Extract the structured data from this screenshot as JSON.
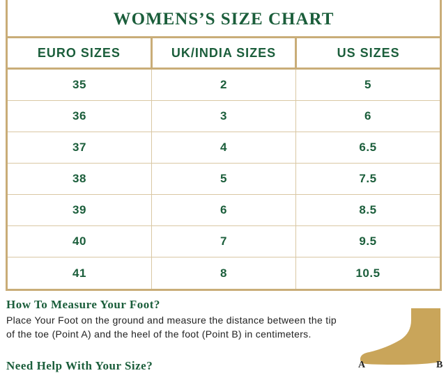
{
  "title": "WOMENS’S SIZE CHART",
  "table": {
    "headers": [
      "EURO SIZES",
      "UK/INDIA SIZES",
      "US SIZES"
    ],
    "rows": [
      [
        "35",
        "2",
        "5"
      ],
      [
        "36",
        "3",
        "6"
      ],
      [
        "37",
        "4",
        "6.5"
      ],
      [
        "38",
        "5",
        "7.5"
      ],
      [
        "39",
        "6",
        "8.5"
      ],
      [
        "40",
        "7",
        "9.5"
      ],
      [
        "41",
        "8",
        "10.5"
      ]
    ]
  },
  "measure": {
    "heading": "How To Measure Your Foot?",
    "text": "Place Your Foot on the ground and measure the distance between the tip of the toe (Point A) and the heel of the foot (Point B) in centimeters."
  },
  "help_heading": "Need Help With Your Size?",
  "foot": {
    "point_a": "A",
    "point_b": "B",
    "color": "#c9a55a"
  },
  "colors": {
    "accent": "#1b5e3b",
    "border": "#c9ad78"
  }
}
